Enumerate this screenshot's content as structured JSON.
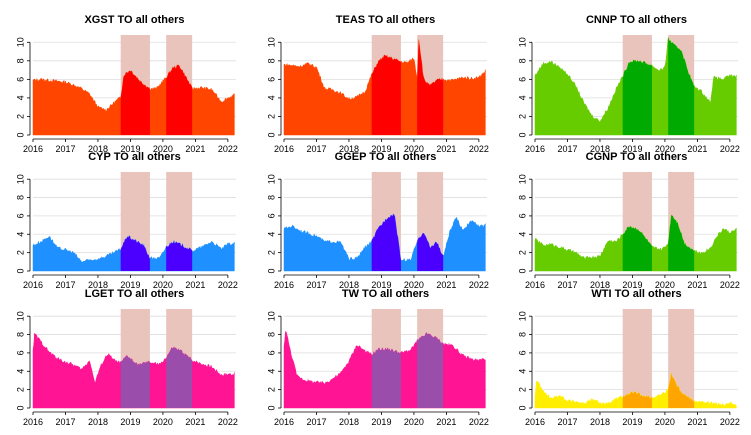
{
  "chart_data": [
    {
      "type": "area",
      "title": "XGST TO all others",
      "xlabel": "",
      "ylabel": "",
      "xlim": [
        2016,
        2022.25
      ],
      "ylim": [
        0,
        11
      ],
      "xticks": [
        "2016",
        "2017",
        "2018",
        "2019",
        "2020",
        "2021",
        "2022"
      ],
      "yticks": [
        "0",
        "2",
        "4",
        "6",
        "8",
        "10"
      ],
      "base_color": "#ff4500",
      "highlight_color": "#ff0000",
      "shaded_periods": [
        [
          2018.7,
          2019.6
        ],
        [
          2020.1,
          2020.9
        ]
      ],
      "x": [
        2016.0,
        2016.25,
        2016.5,
        2016.75,
        2017.0,
        2017.25,
        2017.5,
        2017.75,
        2018.0,
        2018.25,
        2018.5,
        2018.7,
        2018.8,
        2019.0,
        2019.3,
        2019.6,
        2019.8,
        2020.1,
        2020.3,
        2020.5,
        2020.7,
        2020.9,
        2021.2,
        2021.5,
        2021.8,
        2022.0,
        2022.2
      ],
      "values": [
        5.9,
        6.0,
        5.9,
        5.8,
        5.7,
        5.4,
        5.0,
        4.4,
        3.0,
        2.7,
        3.5,
        4.1,
        6.5,
        7.0,
        5.8,
        5.0,
        5.0,
        6.2,
        7.2,
        7.5,
        6.3,
        5.0,
        5.1,
        4.9,
        3.6,
        4.0,
        4.3
      ]
    },
    {
      "type": "area",
      "title": "TEAS TO all others",
      "xlabel": "",
      "ylabel": "",
      "xlim": [
        2016,
        2022.25
      ],
      "ylim": [
        0,
        11
      ],
      "xticks": [
        "2016",
        "2017",
        "2018",
        "2019",
        "2020",
        "2021",
        "2022"
      ],
      "yticks": [
        "0",
        "2",
        "4",
        "6",
        "8",
        "10"
      ],
      "base_color": "#ff4500",
      "highlight_color": "#ff0000",
      "shaded_periods": [
        [
          2018.7,
          2019.6
        ],
        [
          2020.1,
          2020.9
        ]
      ],
      "x": [
        2016.0,
        2016.25,
        2016.5,
        2016.75,
        2017.0,
        2017.25,
        2017.5,
        2017.75,
        2018.0,
        2018.25,
        2018.5,
        2018.7,
        2018.9,
        2019.1,
        2019.3,
        2019.6,
        2019.8,
        2020.0,
        2020.1,
        2020.15,
        2020.3,
        2020.5,
        2020.7,
        2020.9,
        2021.2,
        2021.5,
        2021.8,
        2022.0,
        2022.2
      ],
      "values": [
        7.6,
        7.5,
        7.4,
        7.7,
        7.3,
        5.0,
        4.9,
        4.5,
        3.9,
        4.1,
        4.7,
        6.5,
        7.9,
        8.5,
        8.3,
        7.9,
        7.8,
        8.3,
        6.0,
        10.4,
        6.0,
        5.3,
        5.9,
        6.0,
        5.9,
        6.2,
        6.1,
        6.2,
        6.9
      ]
    },
    {
      "type": "area",
      "title": "CNNP TO all others",
      "xlabel": "",
      "ylabel": "",
      "xlim": [
        2016,
        2022.25
      ],
      "ylim": [
        0,
        11
      ],
      "xticks": [
        "2016",
        "2017",
        "2018",
        "2019",
        "2020",
        "2021",
        "2022"
      ],
      "yticks": [
        "0",
        "2",
        "4",
        "6",
        "8",
        "10"
      ],
      "base_color": "#66cc00",
      "highlight_color": "#00aa00",
      "shaded_periods": [
        [
          2018.7,
          2019.6
        ],
        [
          2020.1,
          2020.9
        ]
      ],
      "x": [
        2016.0,
        2016.25,
        2016.5,
        2016.75,
        2017.0,
        2017.25,
        2017.5,
        2017.75,
        2018.0,
        2018.25,
        2018.5,
        2018.7,
        2018.9,
        2019.2,
        2019.6,
        2019.8,
        2020.0,
        2020.1,
        2020.3,
        2020.5,
        2020.7,
        2020.9,
        2021.1,
        2021.4,
        2021.5,
        2021.8,
        2022.0,
        2022.2
      ],
      "values": [
        6.4,
        7.7,
        7.9,
        7.3,
        6.6,
        5.3,
        3.5,
        2.1,
        1.5,
        2.9,
        5.0,
        6.3,
        7.9,
        8.0,
        7.5,
        7.0,
        7.2,
        10.4,
        9.6,
        9.2,
        7.0,
        5.2,
        4.8,
        3.5,
        6.2,
        6.0,
        6.4,
        6.3
      ]
    },
    {
      "type": "area",
      "title": "CYP TO all others",
      "xlabel": "",
      "ylabel": "",
      "xlim": [
        2016,
        2022.25
      ],
      "ylim": [
        0,
        11
      ],
      "xticks": [
        "2016",
        "2017",
        "2018",
        "2019",
        "2020",
        "2021",
        "2022"
      ],
      "yticks": [
        "0",
        "2",
        "4",
        "6",
        "8",
        "10"
      ],
      "base_color": "#1e90ff",
      "highlight_color": "#4b00ff",
      "shaded_periods": [
        [
          2018.7,
          2019.6
        ],
        [
          2020.1,
          2020.9
        ]
      ],
      "x": [
        2016.0,
        2016.25,
        2016.5,
        2016.75,
        2017.0,
        2017.25,
        2017.5,
        2017.75,
        2018.0,
        2018.25,
        2018.5,
        2018.7,
        2018.9,
        2019.1,
        2019.4,
        2019.6,
        2019.9,
        2020.1,
        2020.3,
        2020.6,
        2020.9,
        2021.2,
        2021.5,
        2021.8,
        2022.0,
        2022.2
      ],
      "values": [
        2.8,
        3.2,
        3.8,
        2.5,
        2.3,
        2.0,
        1.0,
        1.2,
        1.3,
        1.6,
        2.0,
        2.4,
        3.8,
        3.4,
        2.8,
        1.4,
        1.4,
        2.6,
        3.2,
        2.8,
        2.2,
        2.6,
        3.2,
        2.4,
        2.9,
        3.0
      ]
    },
    {
      "type": "area",
      "title": "GGEP TO all others",
      "xlabel": "",
      "ylabel": "",
      "xlim": [
        2016,
        2022.25
      ],
      "ylim": [
        0,
        11
      ],
      "xticks": [
        "2016",
        "2017",
        "2018",
        "2019",
        "2020",
        "2021",
        "2022"
      ],
      "yticks": [
        "0",
        "2",
        "4",
        "6",
        "8",
        "10"
      ],
      "base_color": "#1e90ff",
      "highlight_color": "#4b00ff",
      "shaded_periods": [
        [
          2018.7,
          2019.6
        ],
        [
          2020.1,
          2020.9
        ]
      ],
      "x": [
        2016.0,
        2016.25,
        2016.5,
        2016.75,
        2017.0,
        2017.25,
        2017.5,
        2017.75,
        2018.0,
        2018.25,
        2018.5,
        2018.7,
        2018.9,
        2019.2,
        2019.4,
        2019.6,
        2019.9,
        2020.1,
        2020.3,
        2020.5,
        2020.7,
        2020.9,
        2021.1,
        2021.3,
        2021.5,
        2021.8,
        2022.0,
        2022.2
      ],
      "values": [
        4.6,
        4.9,
        4.4,
        4.1,
        3.8,
        3.2,
        3.2,
        3.1,
        1.3,
        1.4,
        2.6,
        3.2,
        4.6,
        5.9,
        6.2,
        1.2,
        1.2,
        3.2,
        4.3,
        2.5,
        3.2,
        1.5,
        4.2,
        5.8,
        4.5,
        5.5,
        4.8,
        5.0
      ]
    },
    {
      "type": "area",
      "title": "CGNP TO all others",
      "xlabel": "",
      "ylabel": "",
      "xlim": [
        2016,
        2022.25
      ],
      "ylim": [
        0,
        11
      ],
      "xticks": [
        "2016",
        "2017",
        "2018",
        "2019",
        "2020",
        "2021",
        "2022"
      ],
      "yticks": [
        "0",
        "2",
        "4",
        "6",
        "8",
        "10"
      ],
      "base_color": "#66cc00",
      "highlight_color": "#00aa00",
      "shaded_periods": [
        [
          2018.7,
          2019.6
        ],
        [
          2020.1,
          2020.9
        ]
      ],
      "x": [
        2016.0,
        2016.25,
        2016.5,
        2016.75,
        2017.0,
        2017.25,
        2017.5,
        2017.75,
        2018.0,
        2018.25,
        2018.5,
        2018.7,
        2018.9,
        2019.2,
        2019.4,
        2019.6,
        2019.9,
        2020.1,
        2020.2,
        2020.4,
        2020.6,
        2020.9,
        2021.1,
        2021.4,
        2021.6,
        2021.8,
        2022.0,
        2022.2
      ],
      "values": [
        3.5,
        2.8,
        2.9,
        2.6,
        2.3,
        2.0,
        1.4,
        1.5,
        1.6,
        3.3,
        3.2,
        4.0,
        4.9,
        4.5,
        3.6,
        2.6,
        2.3,
        3.0,
        6.2,
        5.2,
        3.0,
        2.2,
        1.9,
        2.5,
        3.8,
        4.6,
        4.2,
        4.5
      ]
    },
    {
      "type": "area",
      "title": "LGET TO all others",
      "xlabel": "",
      "ylabel": "",
      "xlim": [
        2016,
        2022.25
      ],
      "ylim": [
        0,
        11
      ],
      "xticks": [
        "2016",
        "2017",
        "2018",
        "2019",
        "2020",
        "2021",
        "2022"
      ],
      "yticks": [
        "0",
        "2",
        "4",
        "6",
        "8",
        "10"
      ],
      "base_color": "#ff1493",
      "highlight_color": "#9b4dab",
      "shaded_periods": [
        [
          2018.7,
          2019.6
        ],
        [
          2020.1,
          2020.9
        ]
      ],
      "x": [
        2016.0,
        2016.05,
        2016.25,
        2016.5,
        2016.75,
        2017.0,
        2017.25,
        2017.5,
        2017.75,
        2017.9,
        2018.1,
        2018.3,
        2018.5,
        2018.7,
        2018.9,
        2019.2,
        2019.6,
        2019.9,
        2020.1,
        2020.3,
        2020.6,
        2020.9,
        2021.2,
        2021.5,
        2021.8,
        2022.0,
        2022.2
      ],
      "values": [
        6.2,
        8.1,
        7.2,
        6.1,
        5.4,
        5.0,
        4.7,
        4.2,
        5.2,
        2.7,
        4.7,
        5.9,
        5.2,
        4.9,
        5.7,
        4.7,
        5.0,
        4.7,
        5.5,
        6.6,
        6.1,
        5.2,
        4.8,
        4.5,
        3.6,
        3.7,
        3.7
      ]
    },
    {
      "type": "area",
      "title": "TW TO all others",
      "xlabel": "",
      "ylabel": "",
      "xlim": [
        2016,
        2022.25
      ],
      "ylim": [
        0,
        11
      ],
      "xticks": [
        "2016",
        "2017",
        "2018",
        "2019",
        "2020",
        "2021",
        "2022"
      ],
      "yticks": [
        "0",
        "2",
        "4",
        "6",
        "8",
        "10"
      ],
      "base_color": "#ff1493",
      "highlight_color": "#9b4dab",
      "shaded_periods": [
        [
          2018.7,
          2019.6
        ],
        [
          2020.1,
          2020.9
        ]
      ],
      "x": [
        2016.0,
        2016.05,
        2016.2,
        2016.4,
        2016.6,
        2016.8,
        2017.0,
        2017.25,
        2017.5,
        2017.75,
        2018.0,
        2018.25,
        2018.5,
        2018.7,
        2018.9,
        2019.2,
        2019.6,
        2019.9,
        2020.1,
        2020.4,
        2020.7,
        2020.9,
        2021.2,
        2021.5,
        2021.8,
        2022.0,
        2022.2
      ],
      "values": [
        6.6,
        8.6,
        6.2,
        3.5,
        3.1,
        2.9,
        2.8,
        2.7,
        3.2,
        3.8,
        5.1,
        6.9,
        6.2,
        5.8,
        6.4,
        6.4,
        6.0,
        6.3,
        7.3,
        8.1,
        7.6,
        7.0,
        6.8,
        5.7,
        5.3,
        5.2,
        5.4
      ]
    },
    {
      "type": "area",
      "title": "WTI TO all others",
      "xlabel": "",
      "ylabel": "",
      "xlim": [
        2016,
        2022.25
      ],
      "ylim": [
        0,
        11
      ],
      "xticks": [
        "2016",
        "2017",
        "2018",
        "2019",
        "2020",
        "2021",
        "2022"
      ],
      "yticks": [
        "0",
        "2",
        "4",
        "6",
        "8",
        "10"
      ],
      "base_color": "#ffee00",
      "highlight_color": "#ffa500",
      "shaded_periods": [
        [
          2018.7,
          2019.6
        ],
        [
          2020.1,
          2020.9
        ]
      ],
      "x": [
        2016.0,
        2016.05,
        2016.25,
        2016.5,
        2016.75,
        2017.0,
        2017.25,
        2017.5,
        2017.75,
        2018.0,
        2018.25,
        2018.5,
        2018.7,
        2019.0,
        2019.3,
        2019.6,
        2019.9,
        2020.1,
        2020.2,
        2020.35,
        2020.5,
        2020.7,
        2020.9,
        2021.2,
        2021.5,
        2021.8,
        2022.0,
        2022.2
      ],
      "values": [
        1.2,
        3.1,
        1.8,
        1.0,
        1.4,
        0.8,
        0.7,
        0.5,
        0.9,
        0.6,
        0.4,
        1.0,
        1.2,
        1.7,
        1.4,
        1.1,
        1.5,
        2.0,
        3.8,
        2.6,
        1.8,
        1.2,
        0.8,
        0.6,
        0.5,
        0.3,
        0.5,
        0.4
      ]
    }
  ]
}
